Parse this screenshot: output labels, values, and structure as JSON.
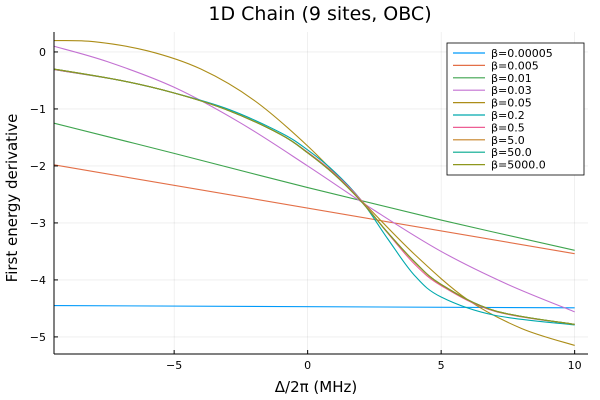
{
  "chart_data": {
    "type": "line",
    "title": "1D Chain (9 sites, OBC)",
    "xlabel": "Δ/2π (MHz)",
    "ylabel": "First energy derivative",
    "xlim": [
      -9.5,
      10.5
    ],
    "ylim": [
      -5.3,
      0.35
    ],
    "xticks": [
      -5,
      0,
      5,
      10
    ],
    "xtick_labels": [
      "−5",
      "0",
      "5",
      "10"
    ],
    "yticks": [
      0,
      -1,
      -2,
      -3,
      -4,
      -5
    ],
    "ytick_labels": [
      "0",
      "−1",
      "−2",
      "−3",
      "−4",
      "−5"
    ],
    "grid": true,
    "legend_position": "top-right",
    "series": [
      {
        "name": "β=0.00005",
        "color": "#009AFA",
        "x": [
          -9.5,
          10
        ],
        "y": [
          -4.45,
          -4.49
        ]
      },
      {
        "name": "β=0.005",
        "color": "#E36F47",
        "x": [
          -9.5,
          10
        ],
        "y": [
          -1.98,
          -3.54
        ]
      },
      {
        "name": "β=0.01",
        "color": "#3EA44E",
        "x": [
          -9.5,
          -5,
          0,
          5,
          10
        ],
        "y": [
          -1.25,
          -1.78,
          -2.38,
          -2.95,
          -3.48
        ]
      },
      {
        "name": "β=0.03",
        "color": "#C371D2",
        "x": [
          -9.5,
          -7.5,
          -5,
          -2.5,
          0,
          2.5,
          5,
          7.5,
          10
        ],
        "y": [
          0.1,
          -0.17,
          -0.62,
          -1.25,
          -2.0,
          -2.78,
          -3.5,
          -4.08,
          -4.56
        ]
      },
      {
        "name": "β=0.05",
        "color": "#AC8D18",
        "x": [
          -9.5,
          -8,
          -6,
          -4,
          -2,
          0,
          2,
          4,
          6,
          8,
          10
        ],
        "y": [
          0.2,
          0.18,
          0.02,
          -0.3,
          -0.85,
          -1.65,
          -2.6,
          -3.55,
          -4.35,
          -4.85,
          -5.15
        ]
      },
      {
        "name": "β=0.2",
        "color": "#00A9AD",
        "x": [
          -9.5,
          -7,
          -5,
          -3,
          -1,
          0,
          1,
          2,
          3,
          4,
          5,
          7,
          10
        ],
        "y": [
          -0.31,
          -0.5,
          -0.72,
          -1.0,
          -1.42,
          -1.72,
          -2.1,
          -2.6,
          -3.28,
          -3.92,
          -4.3,
          -4.62,
          -4.79
        ]
      },
      {
        "name": "β=0.5",
        "color": "#ED5E93",
        "x": [
          -9.5,
          -7,
          -5,
          -3,
          -1,
          0,
          1,
          2,
          3,
          4,
          5,
          7,
          10
        ],
        "y": [
          -0.31,
          -0.5,
          -0.72,
          -1.02,
          -1.45,
          -1.76,
          -2.13,
          -2.6,
          -3.18,
          -3.72,
          -4.1,
          -4.55,
          -4.78
        ]
      },
      {
        "name": "β=5.0",
        "color": "#C68225",
        "x": [
          -9.5,
          -7,
          -5,
          -3,
          -1,
          0,
          1,
          2,
          3,
          4,
          5,
          7,
          10
        ],
        "y": [
          -0.3,
          -0.5,
          -0.72,
          -1.02,
          -1.45,
          -1.77,
          -2.15,
          -2.62,
          -3.17,
          -3.68,
          -4.08,
          -4.54,
          -4.78
        ]
      },
      {
        "name": "β=50.0",
        "color": "#00A98D",
        "x": [
          -9.5,
          -7,
          -5,
          -3,
          -1,
          0,
          1,
          2,
          3,
          4,
          5,
          7,
          10
        ],
        "y": [
          -0.3,
          -0.5,
          -0.72,
          -1.02,
          -1.45,
          -1.77,
          -2.15,
          -2.62,
          -3.17,
          -3.68,
          -4.08,
          -4.54,
          -4.78
        ]
      },
      {
        "name": "β=5000.0",
        "color": "#8E971D",
        "x": [
          -9.5,
          -7,
          -5,
          -3,
          -1,
          0,
          1,
          2,
          3,
          4,
          5,
          7,
          10
        ],
        "y": [
          -0.3,
          -0.5,
          -0.72,
          -1.02,
          -1.45,
          -1.77,
          -2.15,
          -2.62,
          -3.17,
          -3.68,
          -4.08,
          -4.54,
          -4.78
        ]
      }
    ]
  }
}
